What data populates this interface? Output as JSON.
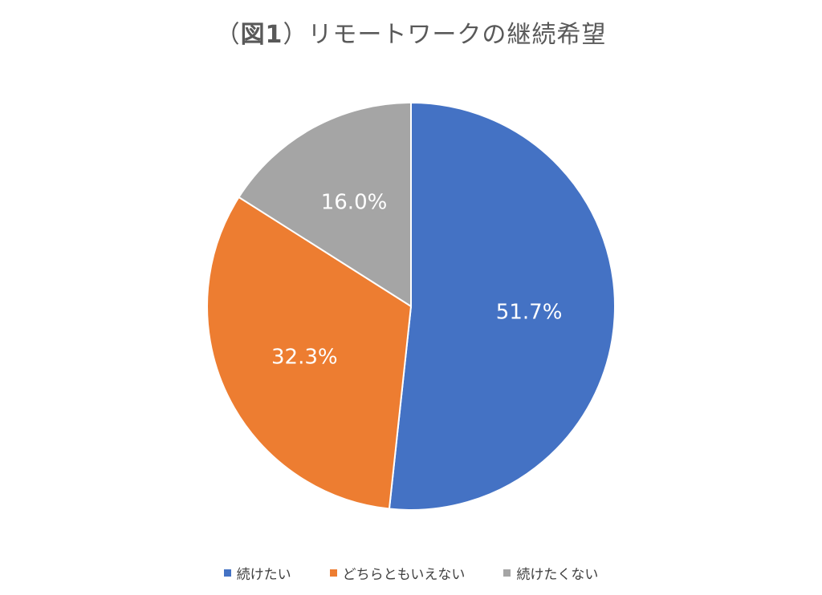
{
  "title": {
    "bracket_open": "（",
    "fig_label": "図1",
    "bracket_close": "）",
    "text": "リモートワークの継続希望"
  },
  "chart_data": {
    "type": "pie",
    "categories": [
      "続けたい",
      "どちらともいえない",
      "続けたくない"
    ],
    "values": [
      51.7,
      32.3,
      16.0
    ],
    "data_labels": [
      "51.7%",
      "32.3%",
      "16.0%"
    ],
    "colors": [
      "#4472C4",
      "#ED7D31",
      "#A5A5A5"
    ],
    "start_angle_deg": 0,
    "direction": "clockwise",
    "legend_position": "bottom"
  }
}
